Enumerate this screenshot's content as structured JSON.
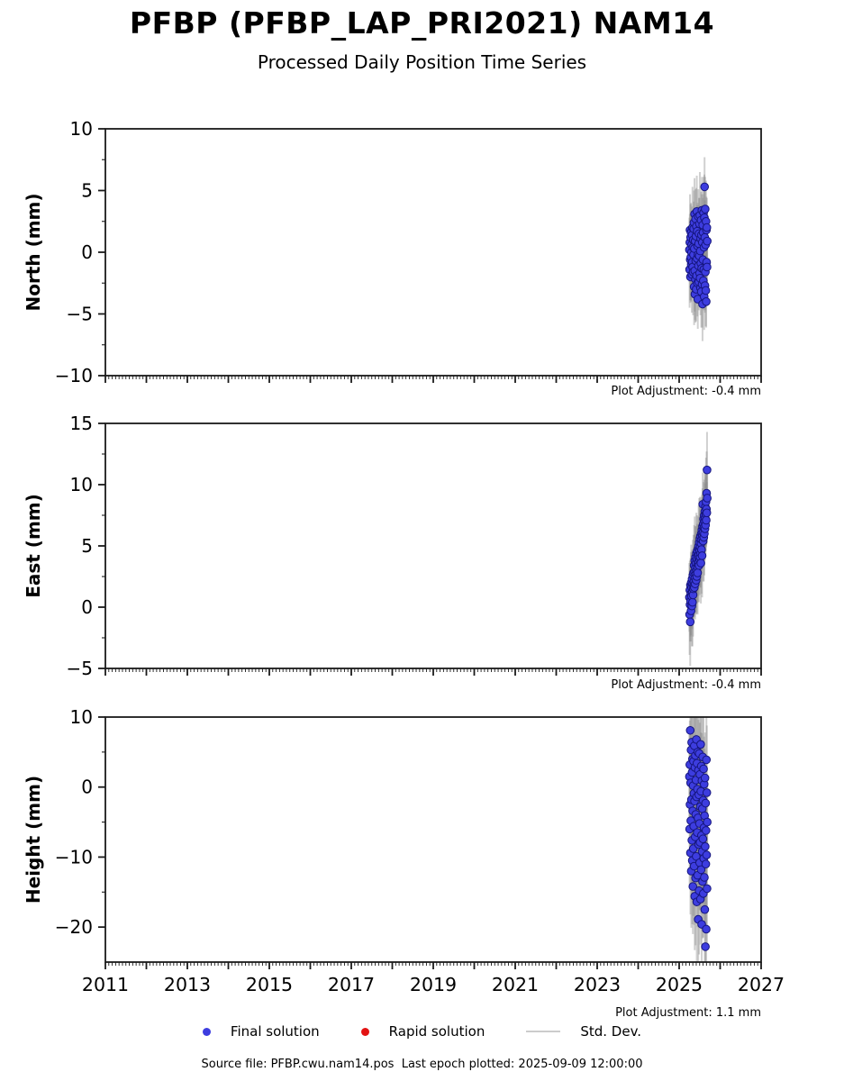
{
  "header": {
    "title": "PFBP (PFBP_LAP_PRI2021) NAM14",
    "subtitle": "Processed Daily Position Time Series"
  },
  "legend": {
    "items": [
      {
        "label": "Final solution",
        "marker": "dot",
        "color": "#3d3ddf"
      },
      {
        "label": "Rapid solution",
        "marker": "dot",
        "color": "#e31313"
      },
      {
        "label": "Std. Dev.",
        "marker": "line",
        "color": "#cccccc"
      }
    ]
  },
  "footer": {
    "text": "Source file: PFBP.cwu.nam14.pos  Last epoch plotted: 2025-09-09 12:00:00"
  },
  "chart_data": {
    "type": "scatter",
    "title": "PFBP (PFBP_LAP_PRI2021) NAM14",
    "subtitle": "Processed Daily Position Time Series",
    "grid": false,
    "legend_position": "bottom",
    "colors": {
      "final": "#3d3ddf",
      "final_edge": "#15157e",
      "rapid": "#e31313",
      "stddev": "#cccccc",
      "errorbar": "#8a8a8a",
      "frame": "#1a1a1a"
    },
    "x": {
      "xlim": [
        2011,
        2027
      ],
      "tick_years": [
        2011,
        2012,
        2013,
        2014,
        2015,
        2016,
        2017,
        2018,
        2019,
        2020,
        2021,
        2022,
        2023,
        2024,
        2025,
        2026,
        2027
      ],
      "label_years": [
        2011,
        2013,
        2015,
        2017,
        2019,
        2021,
        2023,
        2025,
        2027
      ],
      "minor_per_year": 12
    },
    "t": [
      2025.25,
      2025.255,
      2025.26,
      2025.265,
      2025.27,
      2025.275,
      2025.28,
      2025.285,
      2025.29,
      2025.295,
      2025.3,
      2025.305,
      2025.31,
      2025.315,
      2025.32,
      2025.325,
      2025.33,
      2025.335,
      2025.34,
      2025.345,
      2025.35,
      2025.355,
      2025.36,
      2025.365,
      2025.37,
      2025.375,
      2025.38,
      2025.385,
      2025.39,
      2025.395,
      2025.4,
      2025.405,
      2025.41,
      2025.415,
      2025.42,
      2025.425,
      2025.43,
      2025.435,
      2025.44,
      2025.445,
      2025.45,
      2025.455,
      2025.46,
      2025.465,
      2025.47,
      2025.475,
      2025.48,
      2025.485,
      2025.49,
      2025.495,
      2025.5,
      2025.505,
      2025.51,
      2025.515,
      2025.52,
      2025.525,
      2025.53,
      2025.535,
      2025.54,
      2025.545,
      2025.55,
      2025.555,
      2025.56,
      2025.565,
      2025.57,
      2025.575,
      2025.58,
      2025.585,
      2025.59,
      2025.595,
      2025.6,
      2025.605,
      2025.61,
      2025.615,
      2025.62,
      2025.625,
      2025.63,
      2025.635,
      2025.64,
      2025.645,
      2025.65,
      2025.655,
      2025.66,
      2025.665,
      2025.67,
      2025.675,
      2025.68,
      2025.685
    ],
    "panels": [
      {
        "name": "north",
        "ylabel": "North (mm)",
        "ylim": [
          -10,
          10
        ],
        "yticks": [
          -10,
          -5,
          0,
          5,
          10
        ],
        "yminor": 2.5,
        "plot_adjustment": "Plot Adjustment: -0.4 mm",
        "values": [
          0.2,
          -1.4,
          0.8,
          1.8,
          -0.6,
          -2.0,
          1.2,
          -0.4,
          1.6,
          -1.0,
          0.0,
          0.6,
          -1.8,
          1.4,
          -0.8,
          2.0,
          -1.2,
          0.4,
          -1.6,
          1.0,
          -0.2,
          1.9,
          2.4,
          -2.8,
          0.3,
          3.1,
          -1.5,
          -3.4,
          0.9,
          -2.2,
          2.7,
          -0.7,
          1.3,
          -3.0,
          2.1,
          -1.9,
          3.3,
          -0.5,
          1.7,
          -2.5,
          0.5,
          -3.8,
          -0.2,
          2.9,
          -1.1,
          0.7,
          -2.4,
          1.5,
          -0.3,
          2.3,
          -1.7,
          3.0,
          -2.1,
          0.1,
          -2.9,
          1.1,
          -0.9,
          2.6,
          -3.2,
          1.4,
          -1.3,
          3.4,
          -2.6,
          0.8,
          -4.2,
          2.2,
          -0.6,
          1.6,
          -2.3,
          3.2,
          -1.4,
          0.4,
          -3.6,
          2.8,
          5.3,
          1.2,
          -2.7,
          3.5,
          -1.6,
          0.6,
          -3.1,
          2.5,
          -4.0,
          1.8,
          -0.8,
          2.0,
          -1.2,
          0.9
        ],
        "sigmas": [
          2.6,
          3.1,
          2.3,
          2.9,
          3.3,
          2.1,
          2.7,
          3.5,
          2.4,
          3.0,
          2.2,
          2.6,
          3.1,
          2.3,
          2.9,
          3.3,
          2.1,
          2.7,
          3.5,
          2.4,
          3.0,
          2.2,
          2.6,
          3.1,
          2.3,
          2.9,
          3.3,
          2.1,
          2.7,
          3.5,
          2.4,
          3.0,
          2.2,
          2.6,
          3.1,
          2.3,
          2.9,
          3.3,
          2.1,
          2.7,
          3.5,
          2.4,
          3.0,
          2.2,
          2.6,
          3.1,
          2.3,
          2.9,
          3.3,
          2.1,
          2.7,
          3.5,
          2.4,
          3.0,
          2.2,
          2.6,
          3.1,
          2.3,
          2.9,
          3.3,
          2.1,
          2.7,
          3.5,
          2.4,
          3.0,
          2.2,
          2.6,
          3.1,
          2.3,
          2.9,
          3.3,
          2.1,
          2.7,
          3.5,
          2.4,
          3.0,
          2.2,
          2.6,
          3.1,
          2.3,
          2.9,
          3.3,
          2.1,
          2.7,
          3.5,
          2.4,
          3.0,
          2.2
        ]
      },
      {
        "name": "east",
        "ylabel": "East (mm)",
        "ylim": [
          -5,
          15
        ],
        "yticks": [
          -5,
          0,
          5,
          10,
          15
        ],
        "yminor": 2.5,
        "plot_adjustment": "Plot Adjustment: -0.4 mm",
        "values": [
          0.8,
          -0.6,
          1.4,
          0.2,
          -1.2,
          1.8,
          0.5,
          1.1,
          -0.3,
          2.0,
          0.9,
          1.6,
          0.1,
          2.3,
          1.2,
          0.4,
          1.9,
          2.6,
          1.0,
          1.5,
          2.8,
          1.7,
          2.1,
          3.4,
          1.6,
          2.9,
          3.8,
          2.4,
          1.9,
          3.2,
          4.1,
          2.7,
          3.6,
          2.2,
          4.4,
          3.0,
          2.5,
          3.9,
          4.6,
          3.3,
          2.8,
          4.2,
          3.5,
          4.8,
          3.7,
          5.0,
          4.3,
          3.4,
          5.3,
          4.6,
          3.9,
          5.6,
          4.1,
          4.9,
          5.8,
          4.4,
          3.6,
          5.2,
          6.0,
          4.7,
          5.5,
          6.3,
          4.2,
          5.9,
          6.6,
          8.4,
          6.1,
          5.4,
          6.8,
          7.2,
          5.7,
          6.5,
          7.5,
          6.0,
          7.0,
          7.8,
          6.4,
          7.3,
          8.2,
          6.7,
          7.6,
          8.6,
          7.1,
          8.0,
          9.3,
          7.7,
          11.2,
          8.9
        ],
        "sigmas": [
          2.8,
          3.3,
          2.4,
          3.0,
          3.6,
          2.2,
          2.9,
          3.4,
          2.5,
          3.1,
          2.6,
          2.8,
          3.3,
          2.4,
          3.0,
          3.6,
          2.2,
          2.9,
          3.4,
          2.5,
          3.1,
          2.6,
          2.8,
          3.3,
          2.4,
          3.0,
          3.6,
          2.2,
          2.9,
          3.4,
          2.5,
          3.1,
          2.6,
          2.8,
          3.3,
          2.4,
          3.0,
          3.6,
          2.2,
          2.9,
          3.4,
          2.5,
          3.1,
          2.6,
          2.8,
          3.3,
          2.4,
          3.0,
          3.6,
          2.2,
          2.9,
          3.4,
          2.5,
          3.1,
          2.6,
          2.8,
          3.3,
          2.4,
          3.0,
          3.6,
          2.2,
          2.9,
          3.4,
          2.5,
          3.1,
          2.6,
          2.8,
          3.3,
          2.4,
          3.0,
          3.6,
          2.2,
          2.9,
          3.4,
          2.5,
          3.1,
          2.6,
          2.8,
          3.3,
          2.4,
          3.0,
          3.6,
          2.2,
          2.9,
          3.4,
          2.5,
          3.1,
          2.6
        ]
      },
      {
        "name": "height",
        "ylabel": "Height (mm)",
        "ylim": [
          -25,
          10
        ],
        "yticks": [
          -20,
          -10,
          0,
          10
        ],
        "yminor": 5,
        "plot_adjustment": "Plot Adjustment: 1.1 mm",
        "values": [
          1.5,
          -6.0,
          3.2,
          -2.5,
          8.1,
          -9.4,
          0.6,
          -4.8,
          5.3,
          -12.0,
          -1.8,
          6.4,
          -7.6,
          2.1,
          -10.5,
          4.0,
          -3.4,
          -14.2,
          0.2,
          -8.8,
          3.7,
          -5.6,
          -0.9,
          -11.3,
          5.9,
          -2.0,
          -15.6,
          2.8,
          -7.1,
          4.5,
          -13.0,
          -3.9,
          1.0,
          -9.9,
          6.8,
          -1.4,
          -16.4,
          3.4,
          -6.5,
          -0.3,
          -12.6,
          5.0,
          -4.4,
          -18.9,
          2.4,
          -8.2,
          -1.1,
          -14.8,
          4.8,
          -5.2,
          -10.8,
          1.8,
          -7.9,
          -2.8,
          -16.0,
          6.1,
          -0.6,
          -11.8,
          3.0,
          -6.9,
          -19.6,
          0.9,
          -9.2,
          -3.1,
          -13.5,
          4.3,
          -7.4,
          -1.9,
          -15.2,
          2.6,
          -10.2,
          -5.8,
          0.4,
          -12.9,
          -4.1,
          -17.5,
          1.3,
          -8.5,
          -22.8,
          -2.3,
          -11.0,
          -6.2,
          -20.3,
          3.9,
          -9.7,
          -0.8,
          -14.5,
          -5.0
        ],
        "sigmas": [
          7.2,
          8.4,
          6.3,
          9.1,
          7.7,
          8.8,
          6.8,
          7.4,
          9.6,
          8.1,
          6.5,
          7.2,
          8.4,
          6.3,
          9.1,
          7.7,
          8.8,
          6.8,
          7.4,
          9.6,
          8.1,
          6.5,
          7.2,
          8.4,
          6.3,
          9.1,
          7.7,
          8.8,
          6.8,
          7.4,
          9.6,
          8.1,
          6.5,
          7.2,
          8.4,
          6.3,
          9.1,
          7.7,
          8.8,
          6.8,
          7.4,
          9.6,
          8.1,
          6.5,
          7.2,
          8.4,
          6.3,
          9.1,
          7.7,
          8.8,
          6.8,
          7.4,
          9.6,
          8.1,
          6.5,
          7.2,
          8.4,
          6.3,
          9.1,
          7.7,
          8.8,
          6.8,
          7.4,
          9.6,
          8.1,
          6.5,
          7.2,
          8.4,
          6.3,
          9.1,
          7.7,
          8.8,
          6.8,
          7.4,
          9.6,
          8.1,
          6.5,
          7.2,
          8.4,
          6.3,
          9.1,
          7.7,
          8.8,
          6.8,
          7.4,
          9.6,
          8.1,
          6.5
        ]
      }
    ]
  }
}
